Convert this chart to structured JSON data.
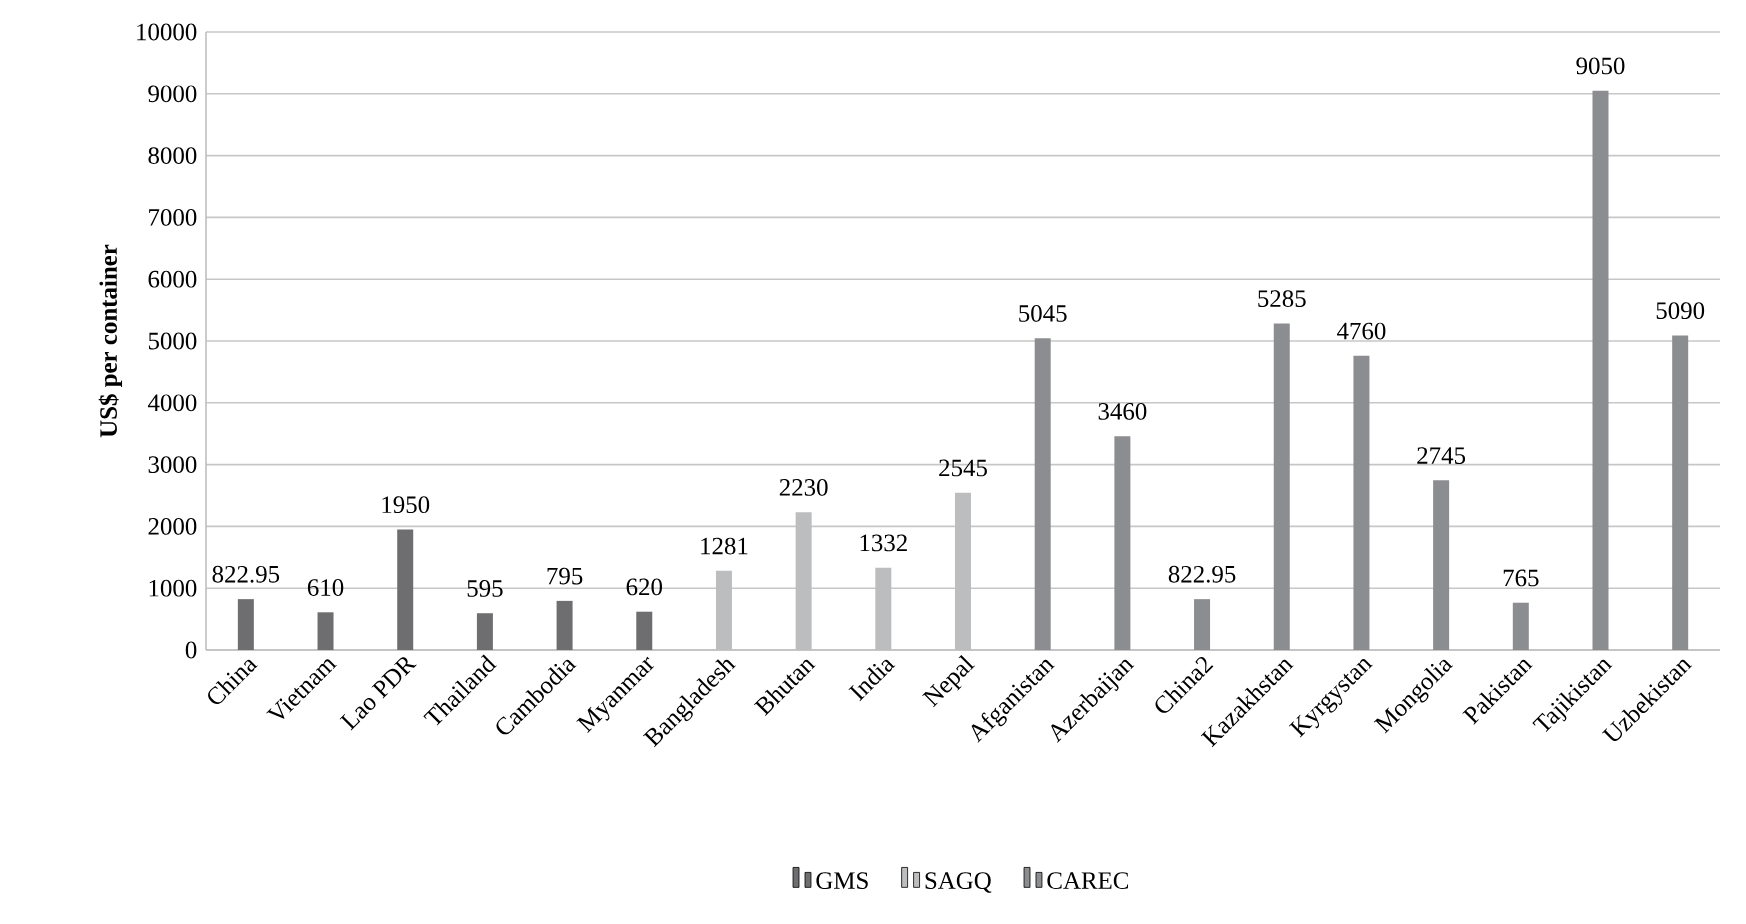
{
  "chart_data": {
    "type": "bar",
    "ylabel": "US$ per container",
    "categories": [
      "China",
      "Vietnam",
      "Lao PDR",
      "Thailand",
      "Cambodia",
      "Myanmar",
      "Bangladesh",
      "Bhutan",
      "India",
      "Nepal",
      "Afganistan",
      "Azerbaijan",
      "China2",
      "Kazakhstan",
      "Kyrgystan",
      "Mongolia",
      "Pakistan",
      "Tajikistan",
      "Uzbekistan"
    ],
    "series": [
      {
        "name": "GMS",
        "color": "#6e6e70",
        "values": [
          822.95,
          610,
          1950,
          595,
          795,
          620,
          null,
          null,
          null,
          null,
          null,
          null,
          null,
          null,
          null,
          null,
          null,
          null,
          null
        ],
        "value_labels": [
          "822.95",
          "610",
          "1950",
          "595",
          "795",
          "620",
          null,
          null,
          null,
          null,
          null,
          null,
          null,
          null,
          null,
          null,
          null,
          null,
          null
        ]
      },
      {
        "name": "SAGQ",
        "color": "#bcbdbf",
        "values": [
          null,
          null,
          null,
          null,
          null,
          null,
          1281,
          2230,
          1332,
          2545,
          null,
          null,
          null,
          null,
          null,
          null,
          null,
          null,
          null
        ],
        "value_labels": [
          null,
          null,
          null,
          null,
          null,
          null,
          "1281",
          "2230",
          "1332",
          "2545",
          null,
          null,
          null,
          null,
          null,
          null,
          null,
          null,
          null
        ]
      },
      {
        "name": "CAREC",
        "color": "#8c8d90",
        "values": [
          null,
          null,
          null,
          null,
          null,
          null,
          null,
          null,
          null,
          null,
          5045,
          3460,
          822.95,
          5285,
          4760,
          2745,
          765,
          9050,
          5090
        ],
        "value_labels": [
          null,
          null,
          null,
          null,
          null,
          null,
          null,
          null,
          null,
          null,
          "5045",
          "3460",
          "822.95",
          "5285",
          "4760",
          "2745",
          "765",
          "9050",
          "5090"
        ]
      }
    ],
    "ylim": [
      0,
      10000
    ],
    "yticks": [
      0,
      1000,
      2000,
      3000,
      4000,
      5000,
      6000,
      7000,
      8000,
      9000,
      10000
    ],
    "grid": "y",
    "legend": "bottom"
  }
}
